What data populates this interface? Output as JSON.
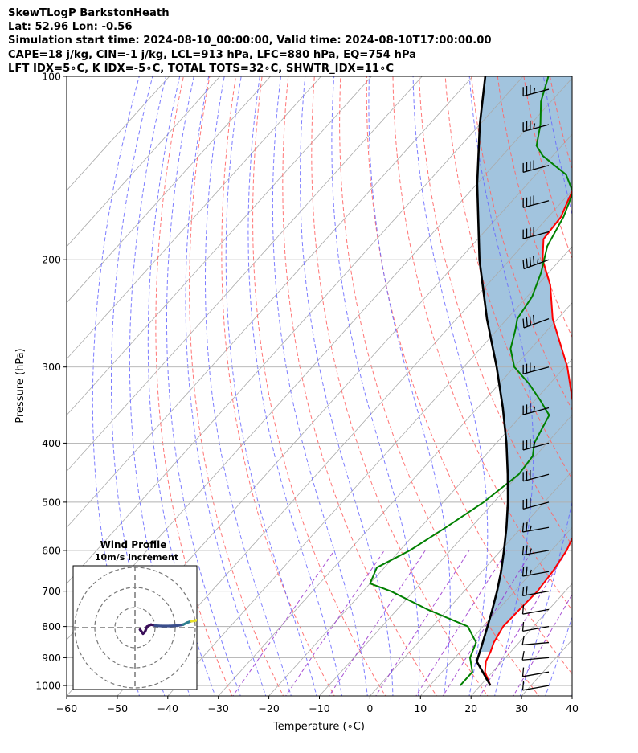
{
  "header": {
    "line1": "SkewTLogP BarkstonHeath",
    "line2": "Lat: 52.96   Lon: -0.56",
    "line3": "Simulation start time: 2024-08-10_00:00:00, Valid time: 2024-08-10T17:00:00.00",
    "line4": "CAPE=18 j/kg, CIN=-1 j/kg, LCL=913 hPa, LFC=880 hPa, EQ=754 hPa",
    "line5": "LFT IDX=5∘C, K IDX=-5∘C, TOTAL TOTS=32∘C, SHWTR_IDX=11∘C"
  },
  "chart_data": {
    "type": "skewt",
    "xlabel": "Temperature (∘C)",
    "ylabel": "Pressure (hPa)",
    "xlim": [
      -60,
      40
    ],
    "plim": [
      1040,
      100
    ],
    "x_ticks": [
      -60,
      -50,
      -40,
      -30,
      -20,
      -10,
      0,
      10,
      20,
      30,
      40
    ],
    "p_ticks": [
      100,
      200,
      300,
      400,
      500,
      600,
      700,
      800,
      900,
      1000
    ],
    "colors": {
      "temperature": "#ff0000",
      "dewpoint": "#008000",
      "parcel": "#000000",
      "cape_fill": "#a2c4de",
      "dry_adiabat": "#ff6666",
      "moist_adiabat": "#6666ff",
      "mixing_ratio": "#9933cc",
      "isotherm": "#aaaaaa"
    },
    "temperature": [
      {
        "p": 1000,
        "t": 22.0
      },
      {
        "p": 950,
        "t": 18.5
      },
      {
        "p": 913,
        "t": 16.8
      },
      {
        "p": 880,
        "t": 16.0
      },
      {
        "p": 850,
        "t": 15.0
      },
      {
        "p": 800,
        "t": 14.0
      },
      {
        "p": 750,
        "t": 14.2
      },
      {
        "p": 700,
        "t": 14.5
      },
      {
        "p": 650,
        "t": 14.0
      },
      {
        "p": 600,
        "t": 13.0
      },
      {
        "p": 550,
        "t": 11.0
      },
      {
        "p": 500,
        "t": 7.0
      },
      {
        "p": 450,
        "t": 2.0
      },
      {
        "p": 400,
        "t": -4.0
      },
      {
        "p": 350,
        "t": -11.0
      },
      {
        "p": 300,
        "t": -19.5
      },
      {
        "p": 250,
        "t": -31.0
      },
      {
        "p": 220,
        "t": -37.5
      },
      {
        "p": 200,
        "t": -43.5
      },
      {
        "p": 185,
        "t": -47.0
      },
      {
        "p": 170,
        "t": -47.5
      },
      {
        "p": 160,
        "t": -49.0
      },
      {
        "p": 150,
        "t": -50.5
      },
      {
        "p": 140,
        "t": -51.5
      },
      {
        "p": 130,
        "t": -53.0
      },
      {
        "p": 120,
        "t": -56.5
      },
      {
        "p": 110,
        "t": -59.0
      },
      {
        "p": 100,
        "t": -62.0
      }
    ],
    "dewpoint": [
      {
        "p": 1000,
        "t": 16.0
      },
      {
        "p": 950,
        "t": 16.0
      },
      {
        "p": 900,
        "t": 13.0
      },
      {
        "p": 850,
        "t": 11.5
      },
      {
        "p": 800,
        "t": 7.0
      },
      {
        "p": 750,
        "t": -4.0
      },
      {
        "p": 700,
        "t": -14.5
      },
      {
        "p": 680,
        "t": -20.0
      },
      {
        "p": 640,
        "t": -21.5
      },
      {
        "p": 600,
        "t": -18.0
      },
      {
        "p": 550,
        "t": -15.0
      },
      {
        "p": 500,
        "t": -12.0
      },
      {
        "p": 450,
        "t": -10.0
      },
      {
        "p": 420,
        "t": -10.5
      },
      {
        "p": 400,
        "t": -12.5
      },
      {
        "p": 360,
        "t": -14.5
      },
      {
        "p": 340,
        "t": -19.0
      },
      {
        "p": 320,
        "t": -24.0
      },
      {
        "p": 300,
        "t": -30.0
      },
      {
        "p": 280,
        "t": -34.0
      },
      {
        "p": 260,
        "t": -36.5
      },
      {
        "p": 250,
        "t": -38.0
      },
      {
        "p": 230,
        "t": -39.0
      },
      {
        "p": 210,
        "t": -41.5
      },
      {
        "p": 190,
        "t": -45.0
      },
      {
        "p": 170,
        "t": -47.0
      },
      {
        "p": 155,
        "t": -49.5
      },
      {
        "p": 145,
        "t": -54.0
      },
      {
        "p": 135,
        "t": -62.0
      },
      {
        "p": 130,
        "t": -65.0
      },
      {
        "p": 120,
        "t": -68.0
      },
      {
        "p": 110,
        "t": -72.0
      },
      {
        "p": 100,
        "t": -75.0
      }
    ],
    "parcel": [
      {
        "p": 1000,
        "t": 22.0
      },
      {
        "p": 913,
        "t": 15.0
      },
      {
        "p": 850,
        "t": 12.8
      },
      {
        "p": 800,
        "t": 10.9
      },
      {
        "p": 754,
        "t": 9.0
      },
      {
        "p": 700,
        "t": 6.5
      },
      {
        "p": 650,
        "t": 3.8
      },
      {
        "p": 600,
        "t": 0.6
      },
      {
        "p": 550,
        "t": -3.0
      },
      {
        "p": 500,
        "t": -7.2
      },
      {
        "p": 450,
        "t": -12.2
      },
      {
        "p": 400,
        "t": -18.0
      },
      {
        "p": 350,
        "t": -25.0
      },
      {
        "p": 300,
        "t": -33.5
      },
      {
        "p": 250,
        "t": -44.0
      },
      {
        "p": 200,
        "t": -56.0
      },
      {
        "p": 150,
        "t": -70.0
      },
      {
        "p": 120,
        "t": -80.0
      },
      {
        "p": 100,
        "t": -87.5
      }
    ],
    "wind_barbs": [
      {
        "p": 1000,
        "speed_kt": 10,
        "direction": 260
      },
      {
        "p": 950,
        "speed_kt": 10,
        "direction": 260
      },
      {
        "p": 900,
        "speed_kt": 10,
        "direction": 265
      },
      {
        "p": 850,
        "speed_kt": 10,
        "direction": 265
      },
      {
        "p": 800,
        "speed_kt": 10,
        "direction": 260
      },
      {
        "p": 750,
        "speed_kt": 10,
        "direction": 260
      },
      {
        "p": 700,
        "speed_kt": 20,
        "direction": 260
      },
      {
        "p": 650,
        "speed_kt": 25,
        "direction": 260
      },
      {
        "p": 600,
        "speed_kt": 25,
        "direction": 260
      },
      {
        "p": 550,
        "speed_kt": 25,
        "direction": 260
      },
      {
        "p": 500,
        "speed_kt": 30,
        "direction": 255
      },
      {
        "p": 450,
        "speed_kt": 30,
        "direction": 255
      },
      {
        "p": 400,
        "speed_kt": 35,
        "direction": 255
      },
      {
        "p": 350,
        "speed_kt": 35,
        "direction": 255
      },
      {
        "p": 300,
        "speed_kt": 35,
        "direction": 255
      },
      {
        "p": 250,
        "speed_kt": 40,
        "direction": 250
      },
      {
        "p": 200,
        "speed_kt": 45,
        "direction": 250
      },
      {
        "p": 180,
        "speed_kt": 40,
        "direction": 255
      },
      {
        "p": 160,
        "speed_kt": 40,
        "direction": 255
      },
      {
        "p": 140,
        "speed_kt": 40,
        "direction": 255
      },
      {
        "p": 120,
        "speed_kt": 35,
        "direction": 255
      },
      {
        "p": 105,
        "speed_kt": 35,
        "direction": 255
      }
    ],
    "hodograph": {
      "title": "Wind Profile",
      "subtitle": "10m/s increment",
      "ring_increment_ms": 10,
      "points": [
        {
          "u": 2.5,
          "v": -1.0
        },
        {
          "u": 4.0,
          "v": -3.0
        },
        {
          "u": 5.0,
          "v": -2.0
        },
        {
          "u": 6.0,
          "v": 0.5
        },
        {
          "u": 8.0,
          "v": 1.5
        },
        {
          "u": 10.0,
          "v": 1.0
        },
        {
          "u": 13.0,
          "v": 0.8
        },
        {
          "u": 17.0,
          "v": 0.8
        },
        {
          "u": 21.0,
          "v": 1.0
        },
        {
          "u": 24.0,
          "v": 1.5
        },
        {
          "u": 26.0,
          "v": 2.5
        },
        {
          "u": 28.0,
          "v": 3.2
        },
        {
          "u": 30.0,
          "v": 3.5
        },
        {
          "u": 31.5,
          "v": 4.0
        }
      ]
    }
  }
}
